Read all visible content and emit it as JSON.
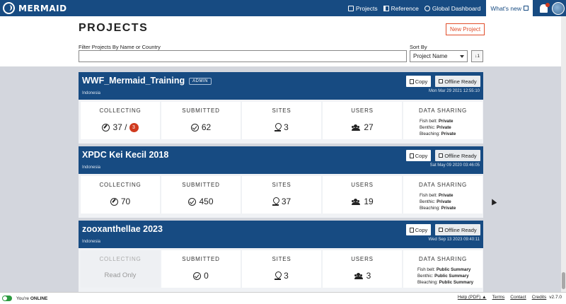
{
  "nav": {
    "logo_text": "MERMAID",
    "links": [
      {
        "label": "Projects",
        "icon": "projects-icon"
      },
      {
        "label": "Reference",
        "icon": "reference-icon"
      },
      {
        "label": "Global Dashboard",
        "icon": "globe-icon"
      }
    ],
    "whats_new_label": "What's new"
  },
  "page": {
    "title": "PROJECTS",
    "new_project_label": "New Project",
    "filter_label": "Filter Projects By Name or Country",
    "filter_value": "",
    "sort_label": "Sort By",
    "sort_value": "Project Name",
    "sort_direction_glyph": "↓1"
  },
  "labels": {
    "copy": "Copy",
    "offline_ready": "Offline Ready",
    "collecting": "COLLECTING",
    "submitted": "SUBMITTED",
    "sites": "SITES",
    "users": "USERS",
    "data_sharing": "DATA SHARING",
    "fish_belt": "Fish belt:",
    "benthic": "Benthic:",
    "bleaching": "Bleaching:",
    "read_only": "Read Only"
  },
  "projects": [
    {
      "name": "WWF_Mermaid_Training",
      "badge": "ADMIN",
      "country": "Indonesia",
      "date": "Mon Mar 29 2021 12:55:10",
      "collecting": "37 /",
      "collecting_alert": "3",
      "submitted": "62",
      "sites": "3",
      "users": "27",
      "sharing": {
        "fish_belt": "Private",
        "benthic": "Private",
        "bleaching": "Private"
      }
    },
    {
      "name": "XPDC Kei Kecil 2018",
      "country": "Indonesia",
      "date": "Sat May 09 2020 03:46:05",
      "collecting": "70",
      "submitted": "450",
      "sites": "37",
      "users": "19",
      "sharing": {
        "fish_belt": "Private",
        "benthic": "Private",
        "bleaching": "Private"
      }
    },
    {
      "name": "zooxanthellae 2023",
      "country": "Indonesia",
      "date": "Wed Sep 13 2023 09:40:11",
      "submitted": "0",
      "sites": "3",
      "users": "3",
      "sharing": {
        "fish_belt": "Public Summary",
        "benthic": "Public Summary",
        "bleaching": "Public Summary"
      }
    }
  ],
  "footer": {
    "online_prefix": "You're",
    "online_status": "ONLINE",
    "links": [
      "Help (PDF) ▲",
      "Terms",
      "Contact",
      "Credits"
    ],
    "version": "v2.7.0"
  },
  "colors": {
    "primary": "#174b82",
    "accent": "#e04d2a",
    "alert": "#d03a1e",
    "online": "#2b9a3e"
  }
}
